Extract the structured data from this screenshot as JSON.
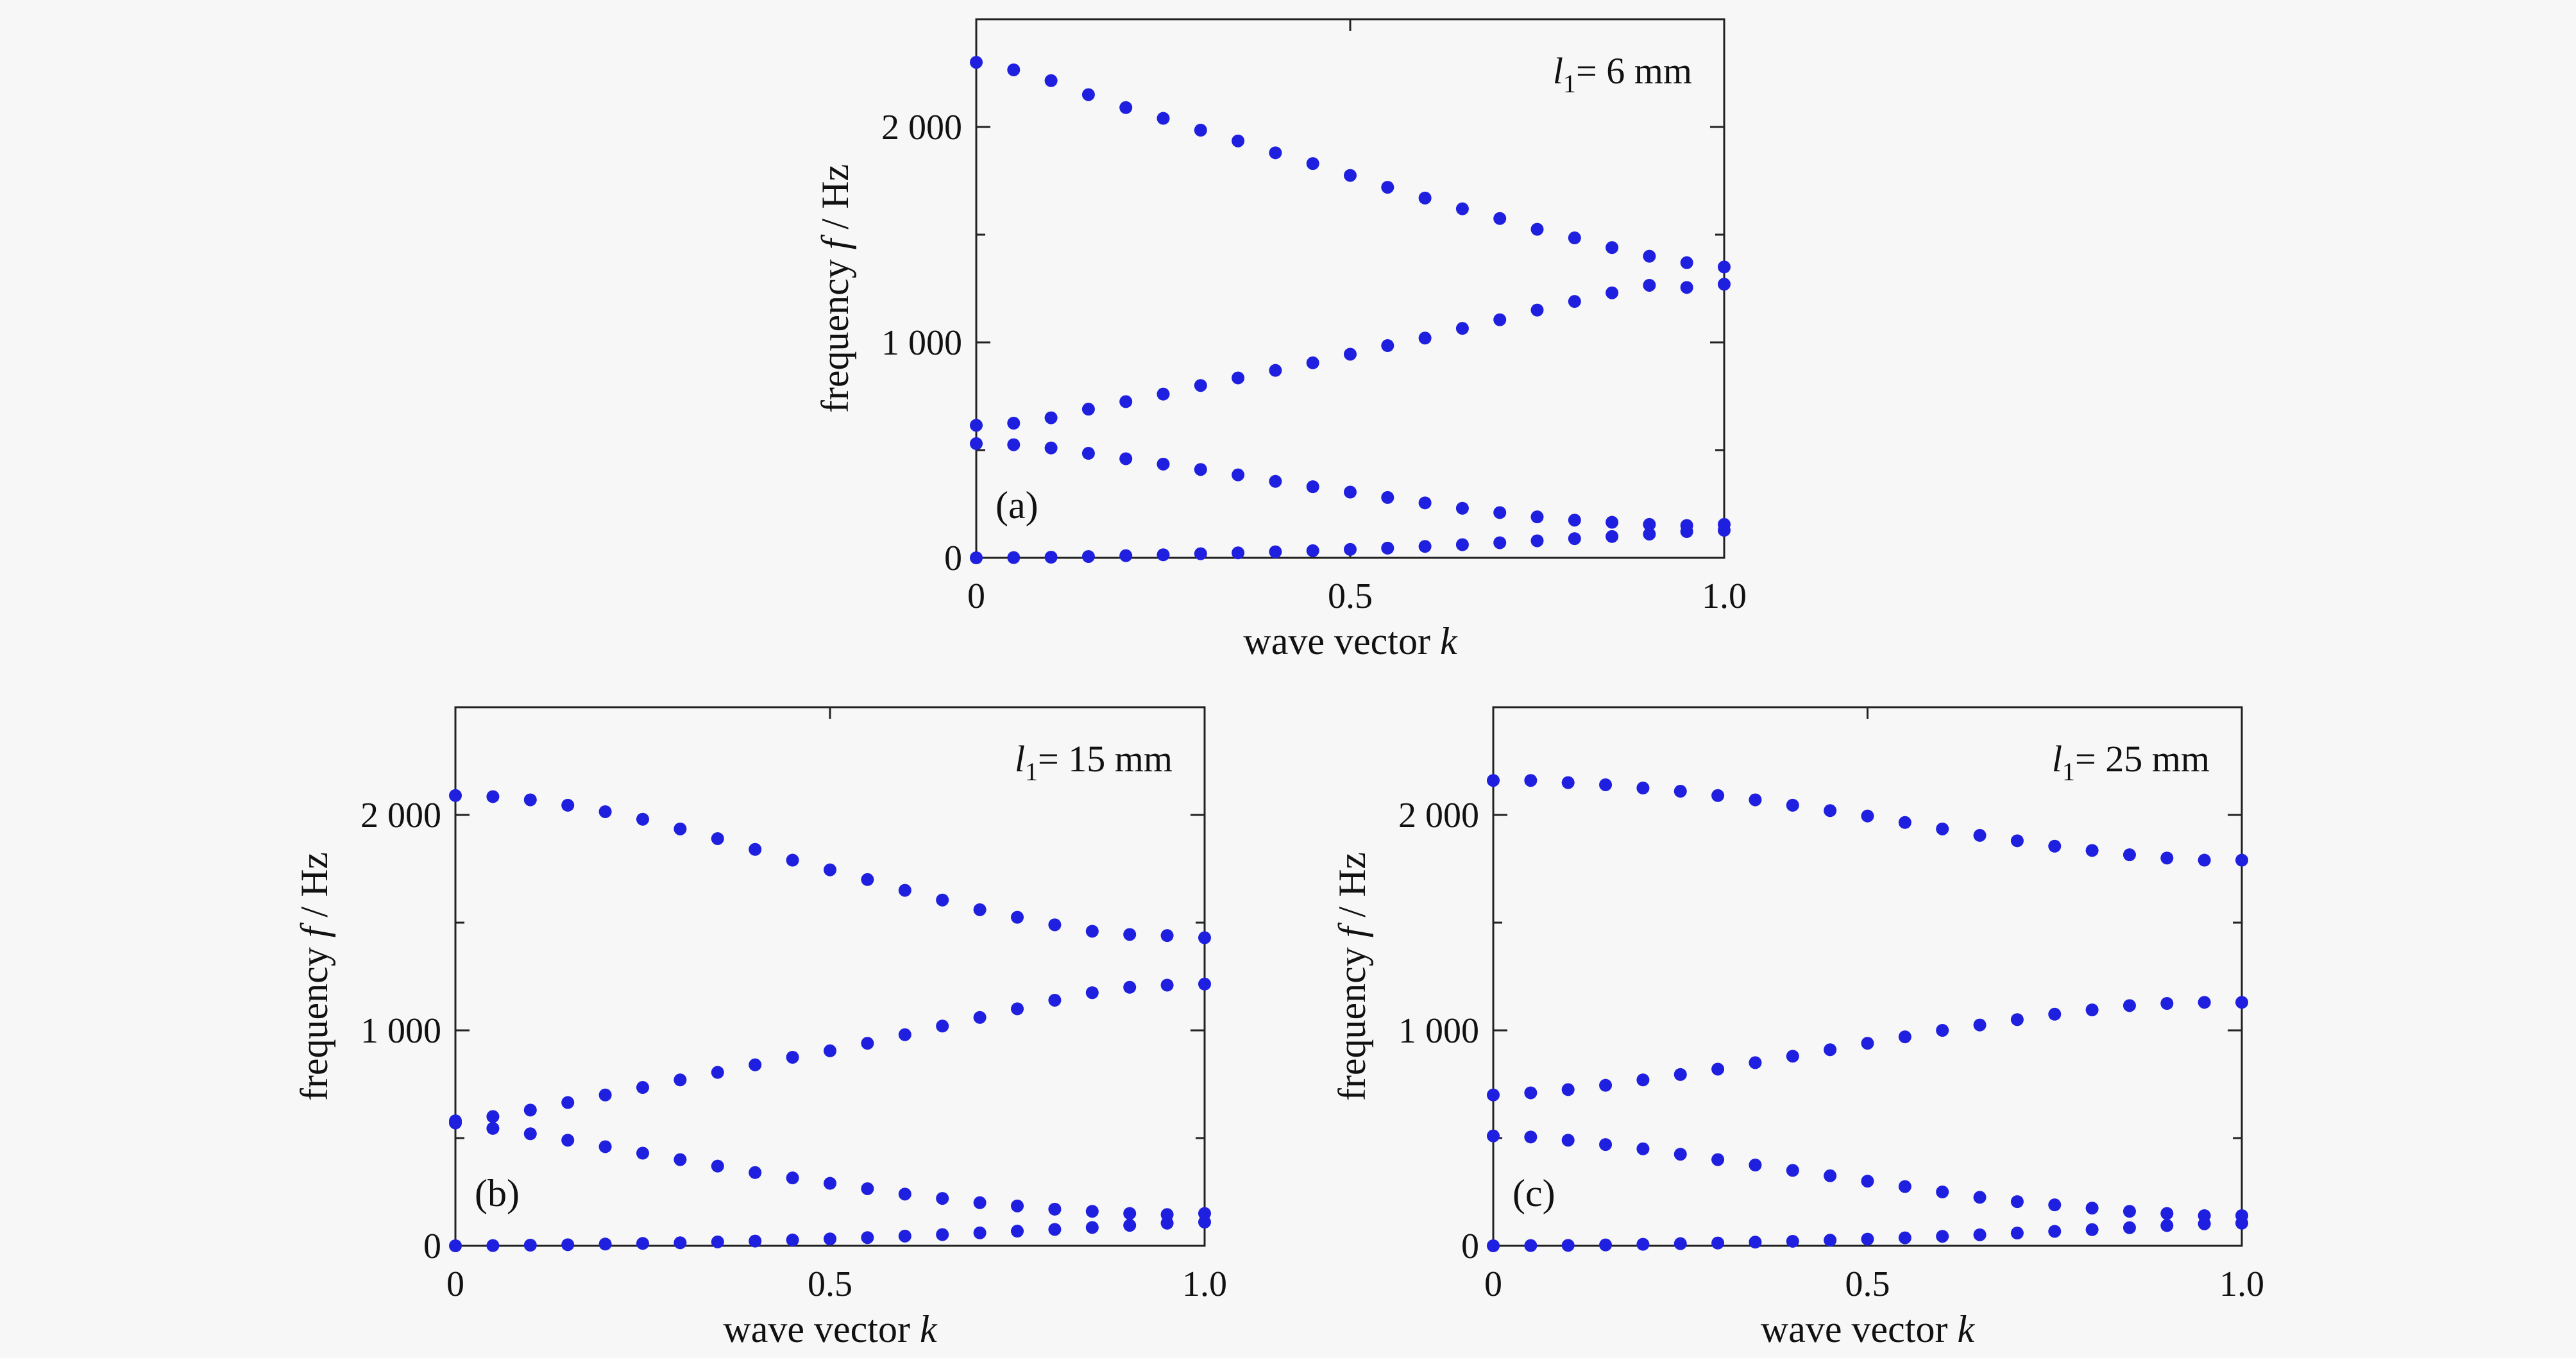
{
  "chart_data": [
    {
      "type": "scatter",
      "panel_label": "(a)",
      "annotation": {
        "symbol": "l",
        "subscript": "1",
        "value": "= 6 mm"
      },
      "xlabel": "wave vector",
      "xlabel_var": "k",
      "ylabel": "frequency",
      "ylabel_var": "f",
      "ylabel_unit": " / Hz",
      "xlim": [
        0,
        1
      ],
      "ylim": [
        0,
        2500
      ],
      "xticks": [
        0,
        0.5,
        1
      ],
      "xtick_labels": [
        "0",
        "0.5",
        "1.0"
      ],
      "yticks": [
        0,
        1000,
        2000
      ],
      "ytick_labels": [
        "0",
        "1 000",
        "2 000"
      ],
      "point_color": "#1f1fe0",
      "series": [
        {
          "x": [
            0,
            0.05,
            0.1,
            0.15,
            0.2,
            0.25,
            0.3,
            0.35,
            0.4,
            0.45,
            0.5,
            0.55,
            0.6,
            0.65,
            0.7,
            0.75,
            0.8,
            0.85,
            0.9,
            0.95,
            1.0
          ],
          "y": [
            0,
            1,
            3,
            6,
            10,
            14,
            19,
            23,
            28,
            33,
            39,
            45,
            53,
            61,
            70,
            79,
            89,
            99,
            110,
            122,
            128
          ]
        },
        {
          "x": [
            0,
            0.05,
            0.1,
            0.15,
            0.2,
            0.25,
            0.3,
            0.35,
            0.4,
            0.45,
            0.5,
            0.55,
            0.6,
            0.65,
            0.7,
            0.75,
            0.8,
            0.85,
            0.9,
            0.95,
            1.0
          ],
          "y": [
            530,
            525,
            510,
            485,
            460,
            435,
            410,
            385,
            355,
            330,
            305,
            280,
            255,
            230,
            210,
            190,
            175,
            165,
            155,
            150,
            155
          ]
        },
        {
          "x": [
            0,
            0.05,
            0.1,
            0.15,
            0.2,
            0.25,
            0.3,
            0.35,
            0.4,
            0.45,
            0.5,
            0.55,
            0.6,
            0.65,
            0.7,
            0.75,
            0.8,
            0.85,
            0.9,
            0.95,
            1.0
          ],
          "y": [
            615,
            625,
            650,
            690,
            725,
            760,
            800,
            835,
            870,
            905,
            945,
            985,
            1020,
            1065,
            1105,
            1150,
            1190,
            1230,
            1265,
            1255,
            1270
          ]
        },
        {
          "x": [
            0,
            0.05,
            0.1,
            0.15,
            0.2,
            0.25,
            0.3,
            0.35,
            0.4,
            0.45,
            0.5,
            0.55,
            0.6,
            0.65,
            0.7,
            0.75,
            0.8,
            0.85,
            0.9,
            0.95,
            1.0
          ],
          "y": [
            2300,
            2265,
            2215,
            2150,
            2090,
            2040,
            1985,
            1935,
            1880,
            1830,
            1775,
            1720,
            1670,
            1620,
            1575,
            1525,
            1485,
            1440,
            1400,
            1370,
            1350
          ]
        }
      ]
    },
    {
      "type": "scatter",
      "panel_label": "(b)",
      "annotation": {
        "symbol": "l",
        "subscript": "1",
        "value": "= 15 mm"
      },
      "xlabel": "wave vector",
      "xlabel_var": "k",
      "ylabel": "frequency",
      "ylabel_var": "f",
      "ylabel_unit": " / Hz",
      "xlim": [
        0,
        1
      ],
      "ylim": [
        0,
        2500
      ],
      "xticks": [
        0,
        0.5,
        1
      ],
      "xtick_labels": [
        "0",
        "0.5",
        "1.0"
      ],
      "yticks": [
        0,
        1000,
        2000
      ],
      "ytick_labels": [
        "0",
        "1 000",
        "2 000"
      ],
      "point_color": "#1f1fe0",
      "series": [
        {
          "x": [
            0,
            0.05,
            0.1,
            0.15,
            0.2,
            0.25,
            0.3,
            0.35,
            0.4,
            0.45,
            0.5,
            0.55,
            0.6,
            0.65,
            0.7,
            0.75,
            0.8,
            0.85,
            0.9,
            0.95,
            1.0
          ],
          "y": [
            0,
            1,
            3,
            5,
            8,
            11,
            14,
            18,
            22,
            27,
            32,
            38,
            45,
            52,
            60,
            68,
            76,
            85,
            95,
            105,
            110
          ]
        },
        {
          "x": [
            0,
            0.05,
            0.1,
            0.15,
            0.2,
            0.25,
            0.3,
            0.35,
            0.4,
            0.45,
            0.5,
            0.55,
            0.6,
            0.65,
            0.7,
            0.75,
            0.8,
            0.85,
            0.9,
            0.95,
            1.0
          ],
          "y": [
            570,
            545,
            520,
            490,
            460,
            430,
            400,
            370,
            340,
            315,
            290,
            265,
            240,
            220,
            200,
            185,
            170,
            160,
            150,
            145,
            150
          ]
        },
        {
          "x": [
            0,
            0.05,
            0.1,
            0.15,
            0.2,
            0.25,
            0.3,
            0.35,
            0.4,
            0.45,
            0.5,
            0.55,
            0.6,
            0.65,
            0.7,
            0.75,
            0.8,
            0.85,
            0.9,
            0.95,
            1.0
          ],
          "y": [
            580,
            600,
            630,
            665,
            700,
            735,
            770,
            805,
            840,
            875,
            905,
            940,
            980,
            1020,
            1060,
            1100,
            1140,
            1175,
            1200,
            1210,
            1215
          ]
        },
        {
          "x": [
            0,
            0.05,
            0.1,
            0.15,
            0.2,
            0.25,
            0.3,
            0.35,
            0.4,
            0.45,
            0.5,
            0.55,
            0.6,
            0.65,
            0.7,
            0.75,
            0.8,
            0.85,
            0.9,
            0.95,
            1.0
          ],
          "y": [
            2090,
            2085,
            2070,
            2045,
            2015,
            1980,
            1935,
            1890,
            1840,
            1790,
            1745,
            1700,
            1650,
            1605,
            1560,
            1525,
            1490,
            1460,
            1445,
            1440,
            1430
          ]
        }
      ]
    },
    {
      "type": "scatter",
      "panel_label": "(c)",
      "annotation": {
        "symbol": "l",
        "subscript": "1",
        "value": "= 25 mm"
      },
      "xlabel": "wave vector",
      "xlabel_var": "k",
      "ylabel": "frequency",
      "ylabel_var": "f",
      "ylabel_unit": " / Hz",
      "xlim": [
        0,
        1
      ],
      "ylim": [
        0,
        2500
      ],
      "xticks": [
        0,
        0.5,
        1
      ],
      "xtick_labels": [
        "0",
        "0.5",
        "1.0"
      ],
      "yticks": [
        0,
        1000,
        2000
      ],
      "ytick_labels": [
        "0",
        "1 000",
        "2 000"
      ],
      "point_color": "#1f1fe0",
      "series": [
        {
          "x": [
            0,
            0.05,
            0.1,
            0.15,
            0.2,
            0.25,
            0.3,
            0.35,
            0.4,
            0.45,
            0.5,
            0.55,
            0.6,
            0.65,
            0.7,
            0.75,
            0.8,
            0.85,
            0.9,
            0.95,
            1.0
          ],
          "y": [
            0,
            1,
            2,
            4,
            7,
            10,
            13,
            17,
            21,
            26,
            31,
            37,
            44,
            51,
            59,
            67,
            75,
            84,
            94,
            102,
            105
          ]
        },
        {
          "x": [
            0,
            0.05,
            0.1,
            0.15,
            0.2,
            0.25,
            0.3,
            0.35,
            0.4,
            0.45,
            0.5,
            0.55,
            0.6,
            0.65,
            0.7,
            0.75,
            0.8,
            0.85,
            0.9,
            0.95,
            1.0
          ],
          "y": [
            510,
            505,
            490,
            470,
            450,
            425,
            400,
            375,
            350,
            325,
            300,
            275,
            250,
            225,
            205,
            190,
            175,
            160,
            150,
            140,
            140
          ]
        },
        {
          "x": [
            0,
            0.05,
            0.1,
            0.15,
            0.2,
            0.25,
            0.3,
            0.35,
            0.4,
            0.45,
            0.5,
            0.55,
            0.6,
            0.65,
            0.7,
            0.75,
            0.8,
            0.85,
            0.9,
            0.95,
            1.0
          ],
          "y": [
            700,
            710,
            725,
            745,
            770,
            795,
            820,
            850,
            880,
            910,
            940,
            970,
            1000,
            1025,
            1050,
            1075,
            1095,
            1115,
            1125,
            1130,
            1130
          ]
        },
        {
          "x": [
            0,
            0.05,
            0.1,
            0.15,
            0.2,
            0.25,
            0.3,
            0.35,
            0.4,
            0.45,
            0.5,
            0.55,
            0.6,
            0.65,
            0.7,
            0.75,
            0.8,
            0.85,
            0.9,
            0.95,
            1.0
          ],
          "y": [
            2160,
            2160,
            2150,
            2140,
            2125,
            2110,
            2090,
            2070,
            2045,
            2020,
            1995,
            1965,
            1935,
            1905,
            1880,
            1855,
            1835,
            1815,
            1800,
            1790,
            1790
          ]
        }
      ]
    }
  ]
}
